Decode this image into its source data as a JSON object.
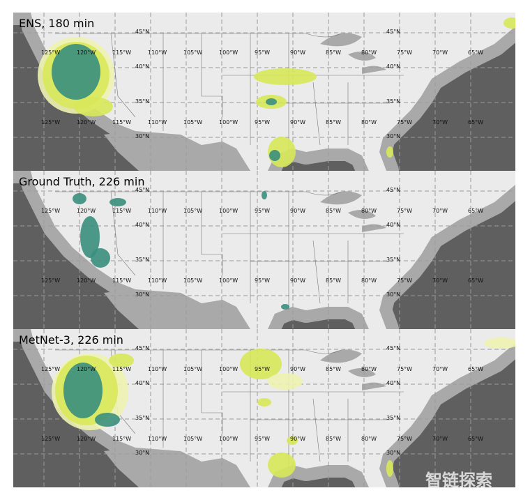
{
  "panels": [
    {
      "title": "ENS, 180 min",
      "lon_top": [
        "125°W",
        "120°W",
        "115°W",
        "110°W",
        "105°W",
        "100°W",
        "95°W",
        "90°W",
        "85°W",
        "80°W",
        "75°W",
        "70°W",
        "65°W"
      ],
      "lon_bottom": [
        "125°W",
        "120°W",
        "115°W",
        "110°W",
        "105°W",
        "100°W",
        "95°W",
        "90°W",
        "85°W",
        "80°W",
        "75°W",
        "70°W",
        "65°W"
      ],
      "lat_left": [
        "45°N",
        "40°N",
        "35°N",
        "30°N"
      ],
      "lat_right": [
        "45°N",
        "40°N",
        "35°N",
        "30°N"
      ]
    },
    {
      "title": "Ground Truth, 226 min",
      "lon_top": [
        "125°W",
        "120°W",
        "115°W",
        "110°W",
        "105°W",
        "100°W",
        "95°W",
        "90°W",
        "85°W",
        "80°W",
        "75°W",
        "70°W",
        "65°W"
      ],
      "lon_bottom": [
        "125°W",
        "120°W",
        "115°W",
        "110°W",
        "105°W",
        "100°W",
        "95°W",
        "90°W",
        "85°W",
        "80°W",
        "75°W",
        "70°W",
        "65°W"
      ],
      "lat_left": [
        "45°N",
        "40°N",
        "35°N",
        "30°N"
      ],
      "lat_right": [
        "45°N",
        "40°N",
        "35°N",
        "30°N"
      ]
    },
    {
      "title": "MetNet-3, 226 min",
      "lon_top": [
        "125°W",
        "120°W",
        "115°W",
        "110°W",
        "105°W",
        "100°W",
        "95°W",
        "90°W",
        "85°W",
        "80°W",
        "75°W",
        "70°W",
        "65°W"
      ],
      "lon_bottom": [
        "125°W",
        "120°W",
        "115°W",
        "110°W",
        "105°W",
        "100°W",
        "95°W",
        "90°W",
        "85°W",
        "80°W",
        "75°W",
        "70°W",
        "65°W"
      ],
      "lat_left": [
        "45°N",
        "40°N",
        "35°N",
        "30°N"
      ],
      "lat_right": [
        "45°N",
        "40°N",
        "35°N",
        "30°N"
      ]
    }
  ],
  "watermark": "智链探索"
}
